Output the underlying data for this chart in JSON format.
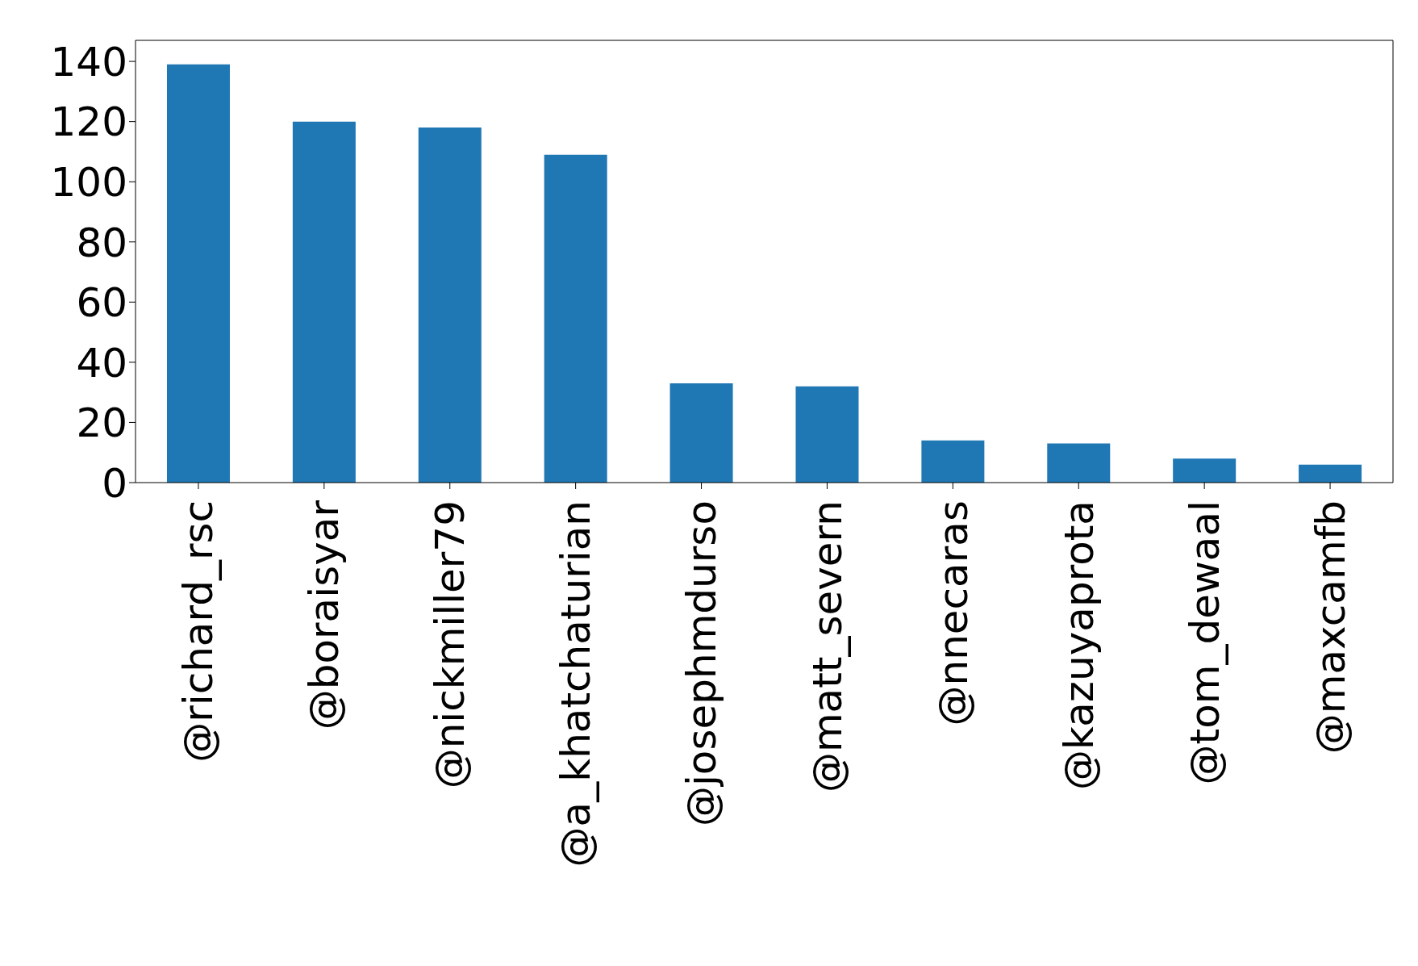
{
  "chart_data": {
    "type": "bar",
    "categories": [
      "@richard_rsc",
      "@boraisyar",
      "@nickmiller79",
      "@a_khatchaturian",
      "@josephmdurso",
      "@matt_severn",
      "@nnecaras",
      "@kazuyaprota",
      "@tom_dewaal",
      "@maxcamfb"
    ],
    "values": [
      139,
      120,
      118,
      109,
      33,
      32,
      14,
      13,
      8,
      6
    ],
    "color": "#1f77b4",
    "ylim": [
      0,
      147
    ],
    "yticks": [
      0,
      20,
      40,
      60,
      80,
      100,
      120,
      140
    ],
    "grid": false
  }
}
